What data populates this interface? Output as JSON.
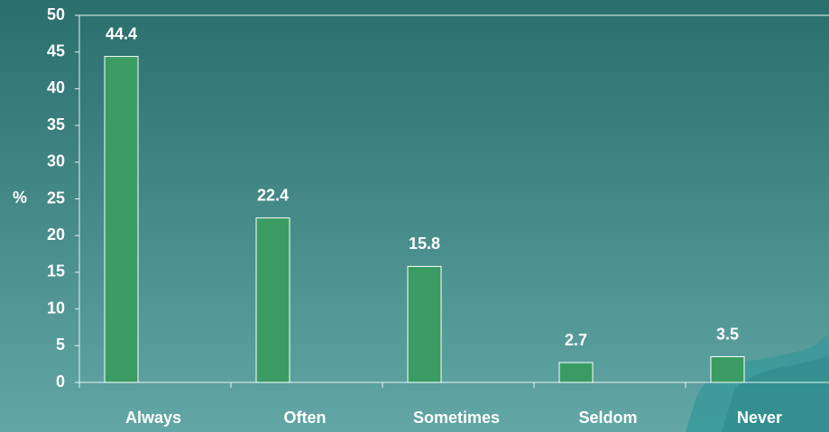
{
  "chart_data": {
    "type": "bar",
    "ylabel": "%",
    "categories": [
      "Always",
      "Often",
      "Sometimes",
      "Seldom",
      "Never"
    ],
    "values": [
      44.4,
      22.4,
      15.8,
      2.7,
      3.5
    ],
    "color": "#3a9c62",
    "ylim": [
      0,
      50
    ],
    "yticks": [
      0,
      5,
      10,
      15,
      20,
      25,
      30,
      35,
      40,
      45,
      50
    ],
    "grid": false
  }
}
